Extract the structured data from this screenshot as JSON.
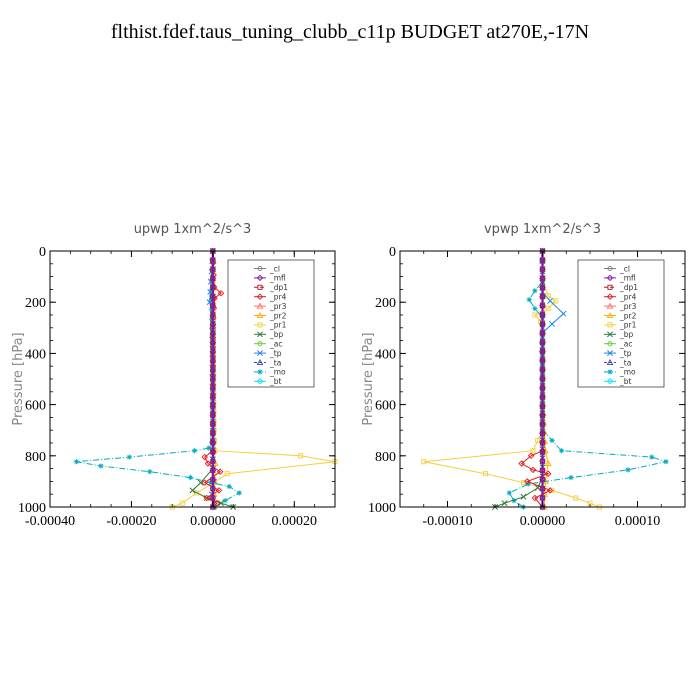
{
  "page_title": "flthist.fdef.taus_tuning_clubb_c11p  BUDGET at270E,-17N",
  "legend_colors": {
    "_cl": "#7f7f7f",
    "_mfl": "#7b1fa2",
    "_dp1": "#b2182b",
    "_pr4": "#e41a1c",
    "_pr3": "#ff6f6f",
    "_pr2": "#ffb000",
    "_pr1": "#f4d03f",
    "_bp": "#2e7d32",
    "_ac": "#66cc33",
    "_tp": "#1e88e5",
    "_ta": "#3949ab",
    "_mo": "#00acc1",
    "_bt": "#00e5ff"
  },
  "chart_data": [
    {
      "type": "line",
      "title": "upwp   1xm^2/s^3",
      "ylabel": "Pressure [hPa]",
      "xlabel": "",
      "xlim": [
        -0.0004,
        0.0003
      ],
      "ylim": [
        1000,
        0
      ],
      "xticks": [
        -0.0004,
        -0.0002,
        0.0,
        0.0002
      ],
      "xtick_labels": [
        "-0.00040",
        "-0.00020",
        "0.00000",
        "0.00020"
      ],
      "yticks": [
        0,
        200,
        400,
        600,
        800,
        1000
      ],
      "ytick_labels": [
        "0",
        "200",
        "400",
        "600",
        "800",
        "1000"
      ],
      "legend": [
        "_cl",
        "_mfl",
        "_dp1",
        "_pr4",
        "_pr3",
        "_pr2",
        "_pr1",
        "_bp",
        "_ac",
        "_tp",
        "_ta",
        "_mo",
        "_bt"
      ],
      "legend_position": "top-right",
      "grid": false,
      "series": [
        {
          "name": "_pr1",
          "points": [
            [
              0,
              0
            ],
            [
              0,
              200
            ],
            [
              3e-06,
              700
            ],
            [
              5e-06,
              780
            ],
            [
              0.000215,
              800
            ],
            [
              0.0003,
              823
            ],
            [
              3.5e-05,
              870
            ],
            [
              3e-06,
              905
            ],
            [
              -4e-05,
              945
            ],
            [
              -7.5e-05,
              985
            ],
            [
              -0.0001,
              1000
            ]
          ]
        },
        {
          "name": "_pr2",
          "points": [
            [
              0,
              0
            ],
            [
              0,
              600
            ],
            [
              2e-06,
              780
            ],
            [
              6e-06,
              830
            ],
            [
              4e-06,
              900
            ],
            [
              2e-06,
              1000
            ]
          ]
        },
        {
          "name": "_mo",
          "points": [
            [
              0,
              0
            ],
            [
              -5e-06,
              195
            ],
            [
              -3e-06,
              230
            ],
            [
              0,
              700
            ],
            [
              -1e-05,
              770
            ],
            [
              -4.5e-05,
              780
            ],
            [
              -0.000205,
              805
            ],
            [
              -0.000335,
              823
            ],
            [
              -0.000275,
              840
            ],
            [
              -0.000155,
              862
            ],
            [
              -5.5e-05,
              885
            ],
            [
              -5e-06,
              905
            ],
            [
              4e-05,
              920
            ],
            [
              6.5e-05,
              945
            ],
            [
              3e-05,
              975
            ],
            [
              5e-06,
              1000
            ]
          ]
        },
        {
          "name": "_bp",
          "points": [
            [
              0,
              0
            ],
            [
              0,
              850
            ],
            [
              -3e-05,
              905
            ],
            [
              -5e-05,
              935
            ],
            [
              -1.5e-05,
              965
            ],
            [
              2e-05,
              985
            ],
            [
              5e-05,
              1000
            ]
          ]
        },
        {
          "name": "_tp",
          "points": [
            [
              0,
              0
            ],
            [
              -8e-06,
              200
            ],
            [
              0,
              260
            ],
            [
              0,
              850
            ],
            [
              3e-06,
              900
            ],
            [
              -3e-06,
              950
            ],
            [
              0,
              1000
            ]
          ]
        },
        {
          "name": "_pr4",
          "points": [
            [
              0,
              0
            ],
            [
              3e-06,
              140
            ],
            [
              2e-05,
              165
            ],
            [
              4e-06,
              185
            ],
            [
              0,
              300
            ],
            [
              0,
              780
            ],
            [
              -2e-05,
              805
            ],
            [
              -1.2e-05,
              830
            ],
            [
              1.8e-05,
              862
            ],
            [
              -2e-05,
              905
            ],
            [
              1.5e-05,
              935
            ],
            [
              -1.5e-05,
              965
            ],
            [
              1e-05,
              985
            ],
            [
              0,
              1000
            ]
          ]
        },
        {
          "name": "_dp1",
          "points": [
            [
              0,
              0
            ],
            [
              0,
              1000
            ]
          ]
        },
        {
          "name": "_mfl",
          "points": [
            [
              0,
              0
            ],
            [
              0,
              1000
            ]
          ]
        }
      ]
    },
    {
      "type": "line",
      "title": "vpwp   1xm^2/s^3",
      "ylabel": "Pressure [hPa]",
      "xlabel": "",
      "xlim": [
        -0.00015,
        0.00015
      ],
      "ylim": [
        1000,
        0
      ],
      "xticks": [
        -0.0001,
        0.0,
        0.0001
      ],
      "xtick_labels": [
        "-0.00010",
        "0.00000",
        "0.00010"
      ],
      "yticks": [
        0,
        200,
        400,
        600,
        800,
        1000
      ],
      "ytick_labels": [
        "0",
        "200",
        "400",
        "600",
        "800",
        "1000"
      ],
      "legend": [
        "_cl",
        "_mfl",
        "_dp1",
        "_pr4",
        "_pr3",
        "_pr2",
        "_pr1",
        "_bp",
        "_ac",
        "_tp",
        "_ta",
        "_mo",
        "_bt"
      ],
      "legend_position": "top-right",
      "grid": false,
      "series": [
        {
          "name": "_pr1",
          "points": [
            [
              0,
              0
            ],
            [
              0,
              120
            ],
            [
              6e-06,
              175
            ],
            [
              1.4e-05,
              195
            ],
            [
              6e-06,
              225
            ],
            [
              -8e-06,
              250
            ],
            [
              -2e-06,
              275
            ],
            [
              0,
              320
            ],
            [
              0,
              700
            ],
            [
              -1e-05,
              780
            ],
            [
              -0.000125,
              823
            ],
            [
              -6e-05,
              870
            ],
            [
              -2e-05,
              905
            ],
            [
              1e-05,
              935
            ],
            [
              3.5e-05,
              965
            ],
            [
              5e-05,
              985
            ],
            [
              6e-05,
              1000
            ]
          ]
        },
        {
          "name": "_pr2",
          "points": [
            [
              0,
              0
            ],
            [
              0,
              600
            ],
            [
              3e-06,
              780
            ],
            [
              6e-06,
              830
            ],
            [
              3e-06,
              900
            ],
            [
              2e-06,
              1000
            ]
          ]
        },
        {
          "name": "_mo",
          "points": [
            [
              0,
              0
            ],
            [
              0,
              120
            ],
            [
              -8e-06,
              155
            ],
            [
              -1.4e-05,
              190
            ],
            [
              -8e-06,
              225
            ],
            [
              0,
              260
            ],
            [
              0,
              700
            ],
            [
              2e-05,
              780
            ],
            [
              0.000115,
              805
            ],
            [
              0.00013,
              823
            ],
            [
              9e-05,
              855
            ],
            [
              3e-05,
              885
            ],
            [
              -1.5e-05,
              910
            ],
            [
              -3.5e-05,
              945
            ],
            [
              -3e-05,
              975
            ],
            [
              -2e-05,
              1000
            ]
          ]
        },
        {
          "name": "_bp",
          "points": [
            [
              0,
              0
            ],
            [
              0,
              880
            ],
            [
              -5e-06,
              925
            ],
            [
              -2e-05,
              960
            ],
            [
              -4e-05,
              985
            ],
            [
              -5e-05,
              1000
            ]
          ]
        },
        {
          "name": "_tp",
          "points": [
            [
              0,
              0
            ],
            [
              0,
              160
            ],
            [
              8e-06,
              195
            ],
            [
              2.2e-05,
              245
            ],
            [
              1e-05,
              285
            ],
            [
              0,
              320
            ],
            [
              0,
              1000
            ]
          ]
        },
        {
          "name": "_pr4",
          "points": [
            [
              0,
              0
            ],
            [
              0,
              780
            ],
            [
              -1.2e-05,
              800
            ],
            [
              -2.2e-05,
              830
            ],
            [
              -1e-05,
              855
            ],
            [
              6e-06,
              870
            ],
            [
              -1.6e-05,
              900
            ],
            [
              8e-06,
              935
            ],
            [
              -8e-06,
              965
            ],
            [
              0,
              1000
            ]
          ]
        },
        {
          "name": "_dp1",
          "points": [
            [
              0,
              0
            ],
            [
              0,
              1000
            ]
          ]
        },
        {
          "name": "_mfl",
          "points": [
            [
              0,
              0
            ],
            [
              0,
              1000
            ]
          ]
        }
      ]
    }
  ]
}
